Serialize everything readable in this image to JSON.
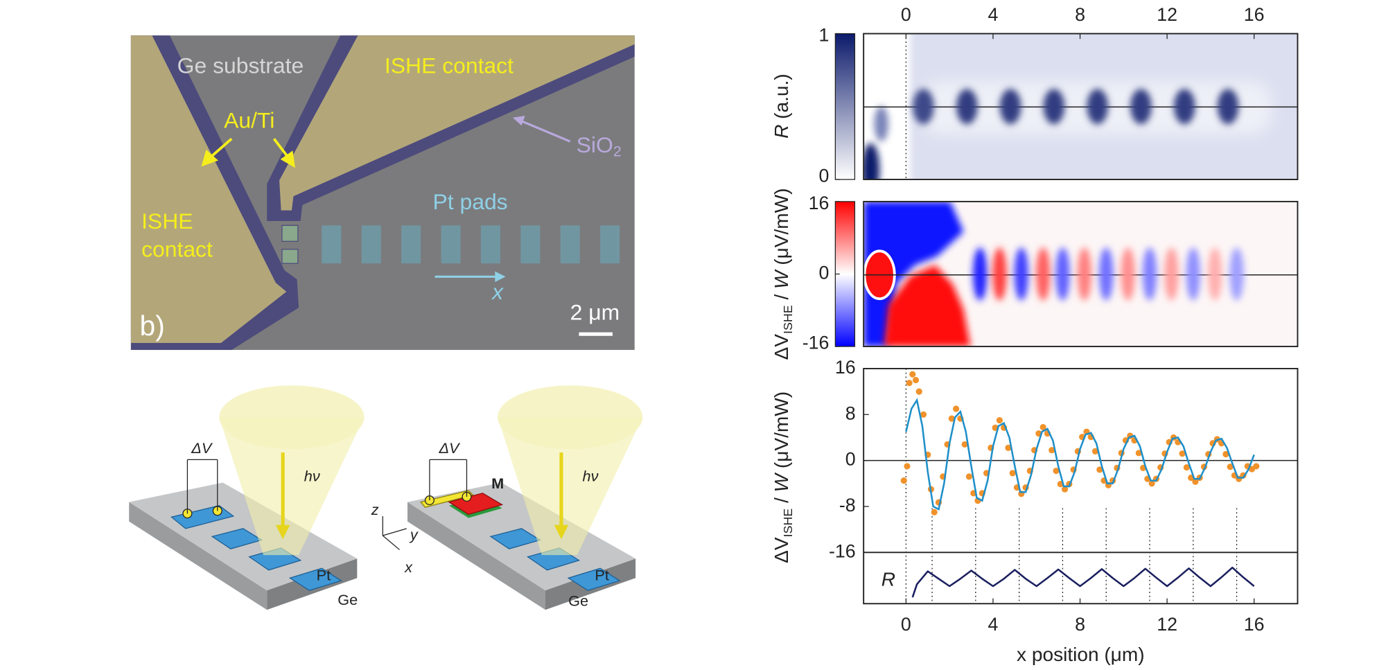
{
  "micrograph": {
    "labels": {
      "substrate": "Ge substrate",
      "contact_top": "ISHE contact",
      "metal": "Au/Ti",
      "oxide": "SiO",
      "oxide_sub": "2",
      "pads": "Pt pads",
      "contact_left_1": "ISHE",
      "contact_left_2": "contact",
      "axis": "x"
    },
    "scale_bar": "2 μm",
    "panel_label": "b)"
  },
  "schematics": [
    {
      "delta_v": "ΔV",
      "photon": "hν",
      "pad": "Pt",
      "substrate": "Ge"
    },
    {
      "delta_v": "ΔV",
      "magnet": "M",
      "photon": "hν",
      "pad": "Pt",
      "substrate": "Ge"
    }
  ],
  "axes_labels": {
    "z": "z",
    "y": "y",
    "x": "x"
  },
  "chart_data": [
    {
      "type": "heatmap",
      "ylabel": [
        "R",
        " (a.u.)"
      ],
      "clim": [
        0,
        1
      ],
      "colorbar_ticks": [
        0,
        1
      ],
      "colors": [
        "#ffffff",
        "#0b1a6b"
      ],
      "xlim": [
        -1.95,
        18
      ],
      "xticks": [
        0,
        4,
        8,
        12,
        16
      ],
      "dotted_x": [
        0
      ],
      "spots": {
        "x": [
          0.8,
          2.8,
          4.8,
          6.8,
          8.8,
          10.8,
          12.8,
          14.8
        ],
        "values": [
          0.8,
          0.85,
          0.85,
          0.85,
          0.85,
          0.85,
          0.85,
          0.85
        ]
      }
    },
    {
      "type": "heatmap",
      "ylabel": [
        "ΔV",
        "ISHE",
        " / ",
        "W",
        " (μV/mW)"
      ],
      "clim": [
        -16,
        16
      ],
      "colorbar_ticks": [
        -16,
        0,
        16
      ],
      "colors": [
        "#0000ff",
        "#ffffff",
        "#ff0000"
      ],
      "xlim": [
        -1.95,
        18
      ],
      "spots": {
        "x": [
          3.4,
          4.3,
          5.3,
          6.3,
          7.2,
          8.2,
          9.2,
          10.2,
          11.2,
          12.2,
          13.2,
          14.2,
          15.2
        ],
        "values": [
          -14,
          12,
          -12,
          10,
          -10,
          8,
          -9,
          7,
          -8,
          6,
          -7,
          5,
          -6
        ]
      }
    },
    {
      "type": "line",
      "ylabel": [
        "ΔV",
        "ISHE",
        " / ",
        "W",
        " (μV/mW)"
      ],
      "xlabel": "x position (μm)",
      "xlim": [
        -1.95,
        18
      ],
      "xticks": [
        0,
        4,
        8,
        12,
        16
      ],
      "ylim": [
        -16,
        16
      ],
      "yticks": [
        -16,
        -8,
        0,
        8,
        16
      ],
      "zero_line": true,
      "dotted_x": [
        0,
        1.2,
        3.2,
        5.2,
        7.2,
        9.2,
        11.2,
        13.2,
        15.2
      ],
      "series": [
        {
          "type": "scatter",
          "color": "#f0922b",
          "x": [
            -0.1,
            0.05,
            0.15,
            0.3,
            0.45,
            0.6,
            0.8,
            1.0,
            1.15,
            1.3,
            1.5,
            1.7,
            1.9,
            2.1,
            2.3,
            2.5,
            2.7,
            2.9,
            3.1,
            3.3,
            3.5,
            3.7,
            3.9,
            4.1,
            4.3,
            4.5,
            4.7,
            4.9,
            5.1,
            5.3,
            5.5,
            5.7,
            5.9,
            6.1,
            6.3,
            6.5,
            6.7,
            6.9,
            7.1,
            7.3,
            7.5,
            7.7,
            7.9,
            8.1,
            8.3,
            8.5,
            8.7,
            8.9,
            9.1,
            9.3,
            9.5,
            9.7,
            9.9,
            10.1,
            10.3,
            10.5,
            10.7,
            10.9,
            11.1,
            11.3,
            11.5,
            11.7,
            11.9,
            12.1,
            12.3,
            12.5,
            12.7,
            12.9,
            13.1,
            13.3,
            13.5,
            13.7,
            13.9,
            14.1,
            14.3,
            14.5,
            14.7,
            14.9,
            15.1,
            15.3,
            15.5,
            15.7,
            15.9,
            16.1
          ],
          "values": [
            -3.5,
            -1,
            13.5,
            15,
            14,
            12,
            8,
            1,
            -5,
            -9,
            -7.3,
            -2.8,
            2.8,
            7.3,
            9,
            7.3,
            2.8,
            -2.8,
            -5.7,
            -7,
            -5.7,
            -2.2,
            2.2,
            5.7,
            7,
            5.7,
            2.2,
            -2.2,
            -4.7,
            -5.8,
            -4.7,
            -1.8,
            1.8,
            4.7,
            5.8,
            4.7,
            1.8,
            -1.8,
            -4.1,
            -5,
            -4.1,
            -1.6,
            1.6,
            4.1,
            5,
            4.1,
            1.6,
            -1.6,
            -3.5,
            -4.3,
            -3.5,
            -1.3,
            1.3,
            3.5,
            4.3,
            3.5,
            1.3,
            -1.3,
            -3.2,
            -4,
            -3.2,
            -1.2,
            1.2,
            3.2,
            4,
            3.2,
            1.2,
            -1.2,
            -3,
            -3.7,
            -3,
            -1.1,
            1.1,
            3,
            3.7,
            3,
            1.1,
            -1.1,
            -2.6,
            -3.2,
            -2.6,
            -1,
            -1.5,
            -1
          ]
        },
        {
          "type": "line",
          "color": "#1f8fc9",
          "x": [
            0,
            0.25,
            0.5,
            0.75,
            1,
            1.25,
            1.5,
            1.75,
            2,
            2.25,
            2.5,
            2.75,
            3,
            3.25,
            3.5,
            3.75,
            4,
            4.25,
            4.5,
            4.75,
            5,
            5.25,
            5.5,
            5.75,
            6,
            6.25,
            6.5,
            6.75,
            7,
            7.25,
            7.5,
            7.75,
            8,
            8.25,
            8.5,
            8.75,
            9,
            9.25,
            9.5,
            9.75,
            10,
            10.25,
            10.5,
            10.75,
            11,
            11.25,
            11.5,
            11.75,
            12,
            12.25,
            12.5,
            12.75,
            13,
            13.25,
            13.5,
            13.75,
            14,
            14.25,
            14.5,
            14.75,
            15,
            15.25,
            15.5,
            15.75,
            16
          ],
          "values": [
            5,
            9,
            10.5,
            6,
            -2,
            -8,
            -8.5,
            -4,
            3,
            7.5,
            8.5,
            5,
            -1,
            -6.5,
            -7,
            -3.5,
            2.5,
            6,
            6.5,
            4,
            -1,
            -5.5,
            -5.5,
            -2.5,
            2,
            5,
            5.5,
            3.5,
            -1,
            -4.5,
            -4.5,
            -2,
            2,
            4.5,
            4.8,
            3,
            -1,
            -4,
            -4,
            -1.5,
            2,
            4,
            4.3,
            2.5,
            -1,
            -3.5,
            -3.5,
            -1.5,
            1.5,
            3.8,
            4,
            2.5,
            -0.5,
            -3.2,
            -3.2,
            -1.2,
            1.5,
            3.5,
            3.8,
            2.2,
            -0.5,
            -3,
            -3,
            -1.5,
            1
          ]
        }
      ],
      "inset": {
        "label": "R",
        "color": "#1a1f5e",
        "ylim": [
          0,
          1
        ],
        "x": [
          0.3,
          0.5,
          1,
          1.5,
          2,
          2.5,
          3,
          3.5,
          4,
          4.5,
          5,
          5.5,
          6,
          6.5,
          7,
          7.5,
          8,
          8.5,
          9,
          9.5,
          10,
          10.5,
          11,
          11.5,
          12,
          12.5,
          13,
          13.5,
          14,
          14.5,
          15,
          15.5,
          16
        ],
        "values": [
          0.1,
          0.45,
          0.8,
          0.6,
          0.4,
          0.6,
          0.82,
          0.6,
          0.4,
          0.6,
          0.84,
          0.6,
          0.4,
          0.62,
          0.85,
          0.62,
          0.4,
          0.62,
          0.86,
          0.62,
          0.4,
          0.62,
          0.87,
          0.63,
          0.4,
          0.63,
          0.88,
          0.63,
          0.4,
          0.64,
          0.9,
          0.64,
          0.4
        ]
      }
    }
  ]
}
